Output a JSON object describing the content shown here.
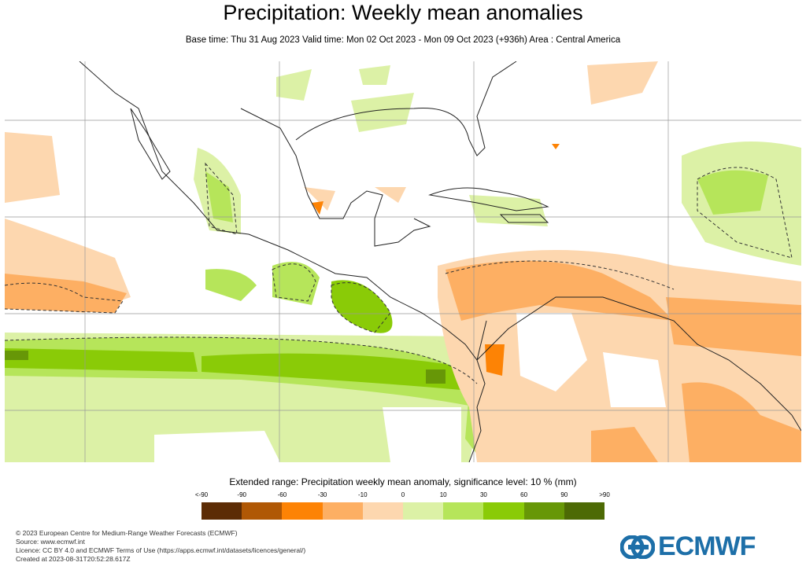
{
  "title": "Precipitation: Weekly mean anomalies",
  "subtitle": "Base time: Thu 31 Aug 2023 Valid time: Mon 02 Oct 2023 - Mon 09 Oct 2023 (+936h) Area : Central America",
  "legend": {
    "title": "Extended range: Precipitation weekly mean anomaly, significance level: 10 % (mm)",
    "ticks": [
      "<-90",
      "-90",
      "-60",
      "-30",
      "-10",
      "0",
      "10",
      "30",
      "60",
      "90",
      ">90"
    ],
    "colors": [
      "#5c2c05",
      "#b05805",
      "#fd8305",
      "#fdaf63",
      "#fdd7af",
      "#dcf1a6",
      "#b6e55a",
      "#8acb07",
      "#679707",
      "#4d6a05"
    ]
  },
  "footer": {
    "line1": "© 2023 European Centre for Medium-Range Weather Forecasts (ECMWF)",
    "line2": "Source: www.ecmwf.int",
    "line3": "Licence: CC BY 4.0 and ECMWF Terms of Use (https://apps.ecmwf.int/datasets/licences/general/)",
    "line4": "Created at 2023-08-31T20:52:28.617Z"
  },
  "logo": {
    "text": "ECMWF",
    "color": "#1d6fa8"
  }
}
